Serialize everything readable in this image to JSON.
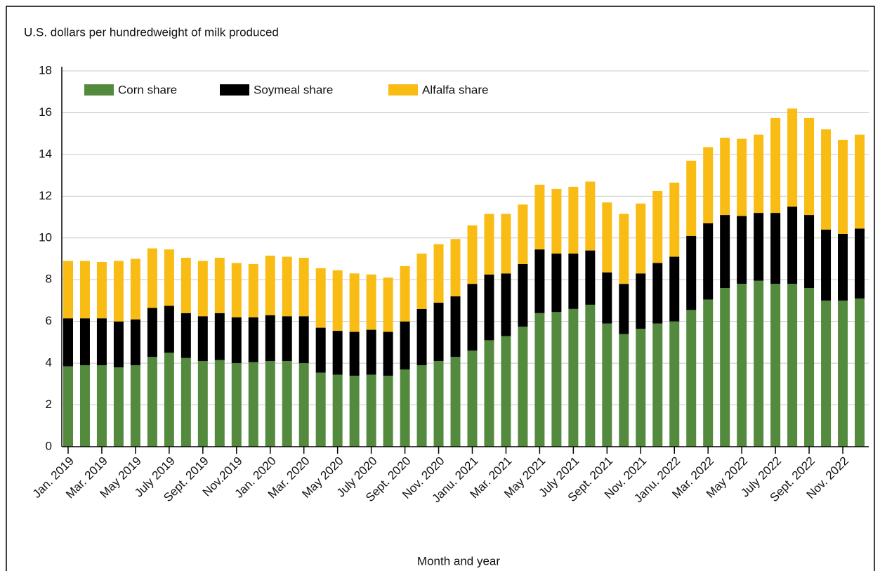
{
  "chart_data": {
    "type": "stacked_bar",
    "title": "U.S. dollars per hundredweight of milk produced",
    "x_label": "Month and year",
    "categories": [
      "Jan. 2019",
      null,
      "Mar. 2019",
      null,
      "May 2019",
      null,
      "July 2019",
      null,
      "Sept. 2019",
      null,
      "Nov.2019",
      null,
      "Jan. 2020",
      null,
      "Mar. 2020",
      null,
      "May 2020",
      null,
      "July 2020",
      null,
      "Sept. 2020",
      null,
      "Nov. 2020",
      null,
      "Janu. 2021",
      null,
      "Mar. 2021",
      null,
      "May 2021",
      null,
      "July 2021",
      null,
      "Sept. 2021",
      null,
      "Nov. 2021",
      null,
      "Janu. 2022",
      null,
      "Mar. 2022",
      null,
      "May 2022",
      null,
      "July 2022",
      null,
      "Sept. 2022",
      null,
      "Nov. 2022",
      null
    ],
    "series": [
      {
        "name": "Corn share",
        "color": "#548a3d",
        "values": [
          3.85,
          3.9,
          3.9,
          3.8,
          3.9,
          4.3,
          4.5,
          4.25,
          4.1,
          4.15,
          4.0,
          4.05,
          4.1,
          4.1,
          4.0,
          3.55,
          3.45,
          3.4,
          3.45,
          3.4,
          3.7,
          3.9,
          4.1,
          4.3,
          4.6,
          5.1,
          5.3,
          5.75,
          6.4,
          6.45,
          6.6,
          6.8,
          5.9,
          5.4,
          5.65,
          5.9,
          6.0,
          6.55,
          7.05,
          7.6,
          7.8,
          7.95,
          7.8,
          7.8,
          7.6,
          7.0,
          7.0,
          7.1
        ]
      },
      {
        "name": "Soymeal share",
        "color": "#000000",
        "values": [
          2.3,
          2.25,
          2.25,
          2.2,
          2.2,
          2.35,
          2.25,
          2.15,
          2.15,
          2.25,
          2.2,
          2.15,
          2.2,
          2.15,
          2.25,
          2.15,
          2.1,
          2.1,
          2.15,
          2.1,
          2.3,
          2.7,
          2.8,
          2.9,
          3.2,
          3.15,
          3.0,
          3.0,
          3.05,
          2.8,
          2.65,
          2.6,
          2.45,
          2.4,
          2.65,
          2.9,
          3.1,
          3.55,
          3.65,
          3.5,
          3.25,
          3.25,
          3.4,
          3.7,
          3.5,
          3.4,
          3.2,
          3.35
        ]
      },
      {
        "name": "Alfalfa share",
        "color": "#f9bc15",
        "values": [
          2.75,
          2.75,
          2.7,
          2.9,
          2.9,
          2.85,
          2.7,
          2.65,
          2.65,
          2.65,
          2.6,
          2.55,
          2.85,
          2.85,
          2.8,
          2.85,
          2.9,
          2.8,
          2.65,
          2.6,
          2.65,
          2.65,
          2.8,
          2.75,
          2.8,
          2.9,
          2.85,
          2.85,
          3.1,
          3.1,
          3.2,
          3.3,
          3.35,
          3.35,
          3.35,
          3.45,
          3.55,
          3.6,
          3.65,
          3.7,
          3.7,
          3.75,
          4.55,
          4.7,
          4.65,
          4.8,
          4.5,
          4.5
        ]
      }
    ],
    "ylim": [
      0,
      18
    ],
    "yticks": [
      0,
      2,
      4,
      6,
      8,
      10,
      12,
      14,
      16,
      18
    ],
    "grid": true
  }
}
